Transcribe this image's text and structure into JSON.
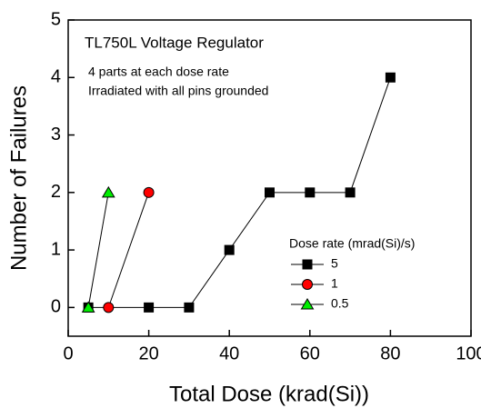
{
  "chart_data": {
    "type": "line",
    "title": "TL750L Voltage Regulator",
    "annotations": [
      "4 parts at each dose rate",
      "Irradiated with all pins grounded"
    ],
    "xlabel": "Total Dose (krad(Si))",
    "ylabel": "Number of Failures",
    "legend_title": "Dose rate (mrad(Si)/s)",
    "xlim": [
      0,
      100
    ],
    "xticks": [
      0,
      20,
      40,
      60,
      80,
      100
    ],
    "ylim": [
      -0.5,
      5
    ],
    "yticks": [
      0,
      1,
      2,
      3,
      4,
      5
    ],
    "series": [
      {
        "name": "5",
        "color": "#000000",
        "marker": "square",
        "x": [
          5,
          20,
          30,
          40,
          50,
          60,
          70,
          80
        ],
        "values": [
          0,
          0,
          0,
          1,
          2,
          2,
          2,
          4
        ]
      },
      {
        "name": "1",
        "color": "#ff0000",
        "marker": "circle",
        "x": [
          10,
          20
        ],
        "values": [
          0,
          2
        ]
      },
      {
        "name": "0.5",
        "color": "#00ee00",
        "marker": "triangle",
        "x": [
          5,
          10
        ],
        "values": [
          0,
          2
        ]
      }
    ]
  }
}
